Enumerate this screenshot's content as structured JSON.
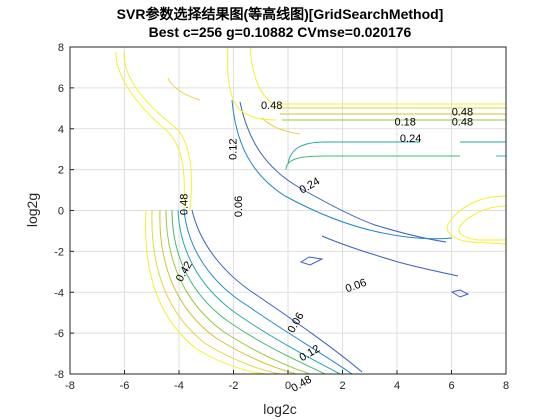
{
  "chart_data": {
    "type": "contour",
    "title": "SVR参数选择结果图(等高线图)[GridSearchMethod]",
    "subtitle": "Best c=256 g=0.10882 CVmse=0.020176",
    "xlabel": "log2c",
    "ylabel": "log2g",
    "xlim": [
      -8,
      8
    ],
    "ylim": [
      -8,
      8
    ],
    "xticks": [
      -8,
      -6,
      -4,
      -2,
      0,
      2,
      4,
      6,
      8
    ],
    "yticks": [
      -8,
      -6,
      -4,
      -2,
      0,
      2,
      4,
      6,
      8
    ],
    "grid": true,
    "levels": [
      {
        "value": 0.06,
        "color": "#3a5fc4"
      },
      {
        "value": 0.12,
        "color": "#1f89c6"
      },
      {
        "value": 0.18,
        "color": "#25a8a8"
      },
      {
        "value": 0.24,
        "color": "#46bb74"
      },
      {
        "value": 0.3,
        "color": "#9bc83b"
      },
      {
        "value": 0.36,
        "color": "#cfc531"
      },
      {
        "value": 0.42,
        "color": "#ead23a"
      },
      {
        "value": 0.48,
        "color": "#f7f02a"
      }
    ],
    "labels": [
      {
        "text": "0.48",
        "x": -3.8,
        "y": 0.3,
        "rot": -90
      },
      {
        "text": "0.06",
        "x": -1.8,
        "y": 0.2,
        "rot": -90
      },
      {
        "text": "0.12",
        "x": -2.0,
        "y": 3.0,
        "rot": -90
      },
      {
        "text": "0.42",
        "x": -3.8,
        "y": -3.0,
        "rot": -60
      },
      {
        "text": "0.18",
        "x": 4.3,
        "y": 4.3,
        "rot": 0
      },
      {
        "text": "0.24",
        "x": 4.5,
        "y": 3.5,
        "rot": 0
      },
      {
        "text": "0.06",
        "x": 2.5,
        "y": -3.7,
        "rot": -20
      },
      {
        "text": "0.06",
        "x": 0.3,
        "y": -5.5,
        "rot": -60
      },
      {
        "text": "0.12",
        "x": 0.8,
        "y": -7.0,
        "rot": -30
      },
      {
        "text": "0.48",
        "x": 0.5,
        "y": -8.5,
        "rot": -30
      },
      {
        "text": "0.48",
        "x": 6.4,
        "y": 4.8,
        "rot": 0
      },
      {
        "text": "0.48",
        "x": 6.4,
        "y": 4.3,
        "rot": 0
      },
      {
        "text": "0.48",
        "x": -0.6,
        "y": 5.1,
        "rot": 0
      },
      {
        "text": "0.24",
        "x": 0.8,
        "y": 1.2,
        "rot": -30
      }
    ]
  }
}
